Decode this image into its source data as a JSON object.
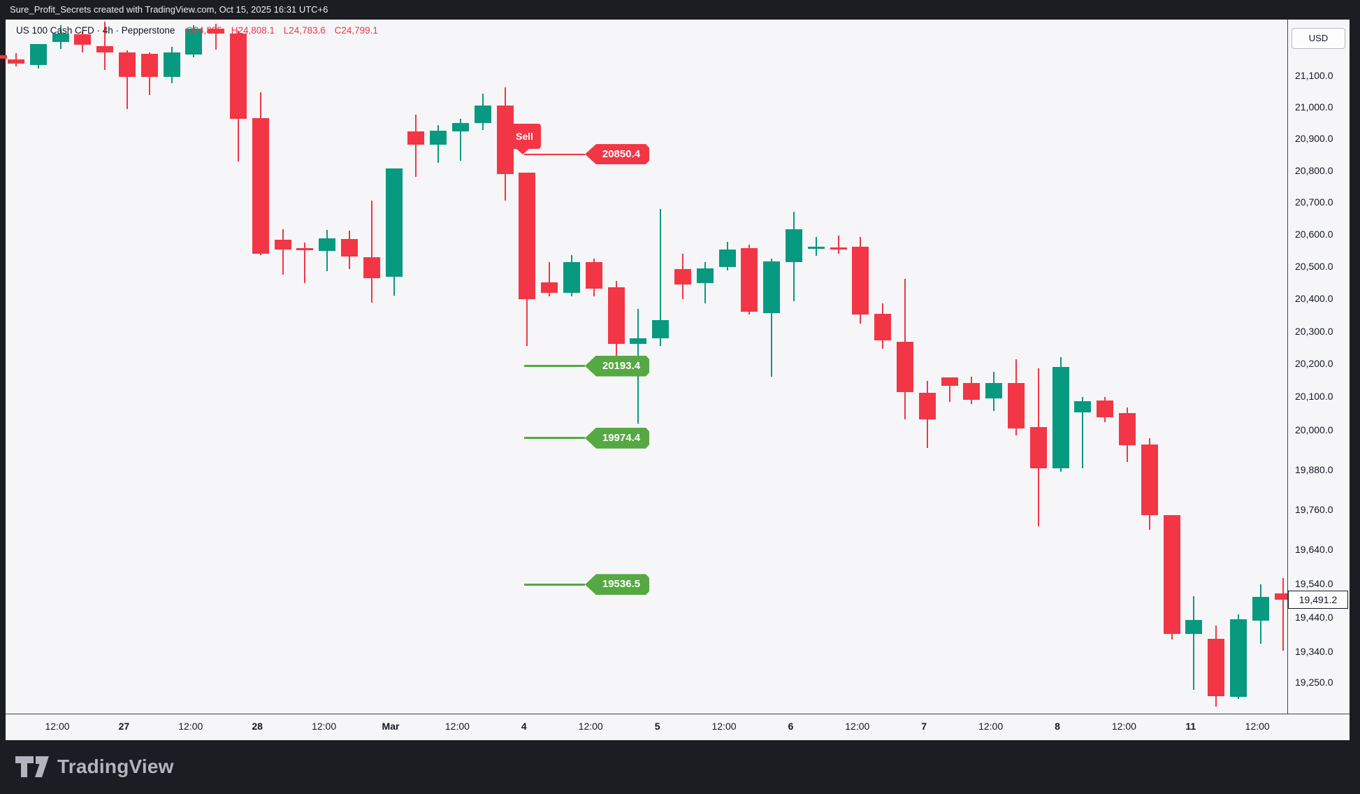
{
  "window": {
    "top_bar_text": "Sure_Profit_Secrets created with TradingView.com, Oct 15, 2025 16:31 UTC+6"
  },
  "legend": {
    "title": "US 100 Cash CFD · 4h · Pepperstone",
    "open_key": "O",
    "open_value": "24,805",
    "high_key": "H",
    "high_value": "24,808.1",
    "low_key": "L",
    "low_value": "24,783.6",
    "close_key": "C",
    "close_value": "24,799.1"
  },
  "price_axis": {
    "currency_label": "USD",
    "last_price": 19491.2,
    "last_price_label": "19,491.2",
    "ticks": [
      21100,
      21000,
      20900,
      20800,
      20700,
      20600,
      20500,
      20400,
      20300,
      20200,
      20100,
      20000,
      19880,
      19760,
      19640,
      19540,
      19440,
      19340,
      19250
    ]
  },
  "time_axis": {
    "labels": [
      {
        "text": "12:00",
        "major": false
      },
      {
        "text": "27",
        "major": true
      },
      {
        "text": "12:00",
        "major": false
      },
      {
        "text": "28",
        "major": true
      },
      {
        "text": "12:00",
        "major": false
      },
      {
        "text": "Mar",
        "major": true
      },
      {
        "text": "12:00",
        "major": false
      },
      {
        "text": "4",
        "major": true
      },
      {
        "text": "12:00",
        "major": false
      },
      {
        "text": "5",
        "major": true
      },
      {
        "text": "12:00",
        "major": false
      },
      {
        "text": "6",
        "major": true
      },
      {
        "text": "12:00",
        "major": false
      },
      {
        "text": "7",
        "major": true
      },
      {
        "text": "12:00",
        "major": false
      },
      {
        "text": "8",
        "major": true
      },
      {
        "text": "12:00",
        "major": false
      },
      {
        "text": "11",
        "major": true
      },
      {
        "text": "12:00",
        "major": false
      }
    ]
  },
  "orders": {
    "sell_flag_label": "Sell",
    "entry": {
      "price": 20850.4,
      "label": "20850.4"
    },
    "targets": [
      {
        "price": 20193.4,
        "label": "20193.4"
      },
      {
        "price": 19974.4,
        "label": "19974.4"
      },
      {
        "price": 19536.5,
        "label": "19536.5"
      }
    ]
  },
  "footer": {
    "brand": "TradingView"
  },
  "colors": {
    "up": "#089981",
    "down": "#F23645",
    "entry_line": "#F23645",
    "target_line": "#56A843",
    "frame_bg": "#1B1D22",
    "chart_bg": "#F6F6F8",
    "axis_text": "#131722",
    "logo_gray": "#B2B5BE"
  },
  "chart_data": {
    "type": "candlestick",
    "symbol": "US 100",
    "instrument": "US 100 Cash CFD",
    "timeframe": "4h",
    "provider": "Pepperstone",
    "currency": "USD",
    "price_scale": "log",
    "grid": false,
    "y_axis_range": [
      19180,
      21280
    ],
    "first_candle_clipped": true,
    "candles_ohlc": [
      [
        21165,
        21178,
        21136,
        21154
      ],
      [
        21151,
        21172,
        21129,
        21138
      ],
      [
        21133,
        21201,
        21122,
        21201
      ],
      [
        21207,
        21261,
        21185,
        21234
      ],
      [
        21232,
        21241,
        21174,
        21198
      ],
      [
        21194,
        21272,
        21118,
        21174
      ],
      [
        21174,
        21180,
        20993,
        21095
      ],
      [
        21169,
        21174,
        21037,
        21095
      ],
      [
        21095,
        21192,
        21075,
        21174
      ],
      [
        21167,
        21261,
        21158,
        21250
      ],
      [
        21250,
        21266,
        21183,
        21234
      ],
      [
        21234,
        21243,
        20827,
        20962
      ],
      [
        20964,
        21046,
        20534,
        20538
      ],
      [
        20582,
        20615,
        20475,
        20551
      ],
      [
        20556,
        20573,
        20447,
        20549
      ],
      [
        20547,
        20612,
        20484,
        20586
      ],
      [
        20584,
        20610,
        20490,
        20529
      ],
      [
        20529,
        20704,
        20387,
        20464
      ],
      [
        20468,
        20805,
        20409,
        20805
      ],
      [
        20922,
        20975,
        20779,
        20880
      ],
      [
        20880,
        20942,
        20823,
        20924
      ],
      [
        20922,
        20962,
        20830,
        20948
      ],
      [
        20948,
        21042,
        20926,
        21004
      ],
      [
        21004,
        21062,
        20704,
        20788
      ],
      [
        20792,
        20792,
        20254,
        20398
      ],
      [
        20451,
        20512,
        20407,
        20418
      ],
      [
        20418,
        20534,
        20407,
        20512
      ],
      [
        20512,
        20523,
        20407,
        20431
      ],
      [
        20436,
        20455,
        20213,
        20261
      ],
      [
        20261,
        20369,
        20017,
        20278
      ],
      [
        20278,
        20678,
        20254,
        20333
      ],
      [
        20492,
        20538,
        20398,
        20444
      ],
      [
        20447,
        20514,
        20385,
        20494
      ],
      [
        20497,
        20575,
        20486,
        20553
      ],
      [
        20556,
        20567,
        20350,
        20359
      ],
      [
        20356,
        20523,
        20161,
        20516
      ],
      [
        20512,
        20669,
        20392,
        20615
      ],
      [
        20556,
        20591,
        20532,
        20560
      ],
      [
        20558,
        20595,
        20538,
        20556
      ],
      [
        20560,
        20591,
        20322,
        20350
      ],
      [
        20354,
        20385,
        20246,
        20272
      ],
      [
        20267,
        20460,
        20030,
        20113
      ],
      [
        20111,
        20148,
        19945,
        20030
      ],
      [
        20159,
        20159,
        20083,
        20133
      ],
      [
        20142,
        20161,
        20077,
        20090
      ],
      [
        20094,
        20175,
        20055,
        20142
      ],
      [
        20142,
        20213,
        19983,
        20004
      ],
      [
        20008,
        20185,
        19709,
        19884
      ],
      [
        19882,
        20220,
        19872,
        20191
      ],
      [
        20051,
        20098,
        19884,
        20085
      ],
      [
        20088,
        20098,
        20023,
        20038
      ],
      [
        20049,
        20066,
        19901,
        19953
      ],
      [
        19955,
        19974,
        19699,
        19742
      ],
      [
        19742,
        19742,
        19375,
        19391
      ],
      [
        19391,
        19502,
        19228,
        19432
      ],
      [
        19377,
        19416,
        19180,
        19210
      ],
      [
        19208,
        19449,
        19202,
        19434
      ],
      [
        19430,
        19537,
        19363,
        19500
      ],
      [
        19510,
        19556,
        19342,
        19491.2
      ]
    ]
  }
}
